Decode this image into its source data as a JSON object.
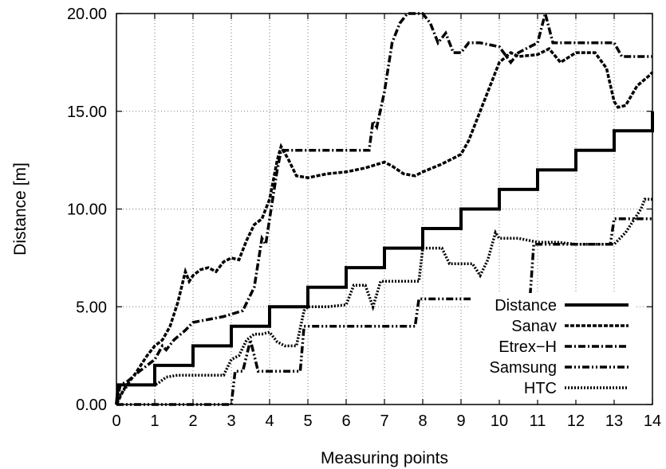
{
  "chart_data": {
    "type": "line",
    "xlabel": "Measuring points",
    "ylabel": "Distance [m]",
    "xlim": [
      0,
      14
    ],
    "ylim": [
      0,
      20
    ],
    "x_ticks": [
      "0",
      "1",
      "2",
      "3",
      "4",
      "5",
      "6",
      "7",
      "8",
      "9",
      "10",
      "11",
      "12",
      "13",
      "14"
    ],
    "y_ticks": [
      "0.00",
      "5.00",
      "10.00",
      "15.00",
      "20.00"
    ],
    "grid": true,
    "legend_position": "bottom-right",
    "series": [
      {
        "name": "Distance",
        "color": "#000000",
        "style": "solid",
        "points": [
          [
            0,
            0
          ],
          [
            0.05,
            1
          ],
          [
            1,
            1
          ],
          [
            1,
            2
          ],
          [
            2,
            2
          ],
          [
            2,
            3
          ],
          [
            3,
            3
          ],
          [
            3,
            4
          ],
          [
            4,
            4
          ],
          [
            4,
            5
          ],
          [
            5,
            5
          ],
          [
            5,
            6
          ],
          [
            6,
            6
          ],
          [
            6,
            7
          ],
          [
            7,
            7
          ],
          [
            7,
            8
          ],
          [
            8,
            8
          ],
          [
            8,
            9
          ],
          [
            9,
            9
          ],
          [
            9,
            10
          ],
          [
            10,
            10
          ],
          [
            10,
            11
          ],
          [
            11,
            11
          ],
          [
            11,
            12
          ],
          [
            12,
            12
          ],
          [
            12,
            13
          ],
          [
            13,
            13
          ],
          [
            13,
            14
          ],
          [
            14,
            14
          ],
          [
            14,
            15
          ]
        ]
      },
      {
        "name": "Sanav",
        "color": "#000000",
        "style": "dashed",
        "points": [
          [
            0,
            0
          ],
          [
            0.2,
            0.8
          ],
          [
            0.5,
            1.6
          ],
          [
            0.8,
            2.5
          ],
          [
            1.0,
            3.0
          ],
          [
            1.2,
            3.3
          ],
          [
            1.4,
            4.0
          ],
          [
            1.6,
            5.2
          ],
          [
            1.8,
            6.8
          ],
          [
            1.9,
            6.3
          ],
          [
            2.0,
            6.6
          ],
          [
            2.2,
            6.9
          ],
          [
            2.4,
            7.0
          ],
          [
            2.6,
            6.8
          ],
          [
            2.8,
            7.3
          ],
          [
            3.0,
            7.5
          ],
          [
            3.2,
            7.4
          ],
          [
            3.4,
            8.4
          ],
          [
            3.6,
            9.2
          ],
          [
            3.8,
            9.5
          ],
          [
            4.0,
            10.5
          ],
          [
            4.1,
            11.5
          ],
          [
            4.2,
            12.5
          ],
          [
            4.3,
            13.2
          ],
          [
            4.5,
            12.5
          ],
          [
            4.7,
            11.7
          ],
          [
            5.0,
            11.6
          ],
          [
            5.5,
            11.8
          ],
          [
            6.0,
            11.9
          ],
          [
            6.5,
            12.1
          ],
          [
            7.0,
            12.4
          ],
          [
            7.2,
            12.2
          ],
          [
            7.5,
            11.8
          ],
          [
            7.8,
            11.7
          ],
          [
            8.0,
            11.9
          ],
          [
            8.5,
            12.3
          ],
          [
            9.0,
            12.8
          ],
          [
            9.2,
            13.5
          ],
          [
            9.5,
            15.0
          ],
          [
            9.8,
            16.5
          ],
          [
            10.0,
            17.5
          ],
          [
            10.3,
            18.0
          ],
          [
            10.5,
            17.8
          ],
          [
            11.0,
            17.9
          ],
          [
            11.3,
            18.2
          ],
          [
            11.6,
            17.5
          ],
          [
            12.0,
            18.0
          ],
          [
            12.5,
            18.0
          ],
          [
            12.8,
            17.2
          ],
          [
            13.0,
            15.5
          ],
          [
            13.1,
            15.2
          ],
          [
            13.3,
            15.3
          ],
          [
            13.6,
            16.3
          ],
          [
            13.9,
            16.8
          ],
          [
            14.0,
            17.0
          ]
        ]
      },
      {
        "name": "Etrex−H",
        "color": "#000000",
        "style": "dash-dot",
        "points": [
          [
            0,
            0
          ],
          [
            0.1,
            1
          ],
          [
            0.3,
            1.2
          ],
          [
            0.6,
            1.7
          ],
          [
            1.0,
            2.3
          ],
          [
            1.2,
            3.0
          ],
          [
            1.3,
            2.8
          ],
          [
            1.5,
            3.3
          ],
          [
            1.8,
            3.8
          ],
          [
            2.0,
            4.2
          ],
          [
            2.8,
            4.5
          ],
          [
            3.3,
            4.8
          ],
          [
            3.6,
            6.0
          ],
          [
            3.8,
            8.5
          ],
          [
            3.9,
            8.2
          ],
          [
            4.0,
            9.5
          ],
          [
            4.2,
            12.0
          ],
          [
            4.3,
            13.0
          ],
          [
            5.0,
            13.0
          ],
          [
            6.0,
            13.0
          ],
          [
            6.6,
            13.0
          ],
          [
            6.7,
            14.5
          ],
          [
            6.8,
            14.2
          ],
          [
            7.0,
            16.0
          ],
          [
            7.2,
            18.5
          ],
          [
            7.4,
            19.5
          ],
          [
            7.6,
            20.0
          ],
          [
            8.0,
            20.0
          ],
          [
            8.2,
            19.5
          ],
          [
            8.4,
            18.5
          ],
          [
            8.6,
            19.0
          ],
          [
            8.8,
            18.0
          ],
          [
            9.0,
            18.0
          ],
          [
            9.2,
            18.5
          ],
          [
            9.5,
            18.5
          ],
          [
            10.0,
            18.3
          ],
          [
            10.3,
            17.5
          ],
          [
            10.5,
            18.0
          ],
          [
            10.8,
            18.3
          ],
          [
            11.0,
            18.5
          ],
          [
            11.2,
            20.0
          ],
          [
            11.4,
            18.5
          ],
          [
            12.0,
            18.5
          ],
          [
            12.5,
            18.5
          ],
          [
            13.0,
            18.5
          ],
          [
            13.2,
            17.8
          ],
          [
            14.0,
            17.8
          ]
        ]
      },
      {
        "name": "Samsung",
        "color": "#000000",
        "style": "dash-dot-dot",
        "points": [
          [
            0,
            0
          ],
          [
            2.9,
            0
          ],
          [
            3.0,
            0
          ],
          [
            3.1,
            1.7
          ],
          [
            3.3,
            1.7
          ],
          [
            3.5,
            3.3
          ],
          [
            3.6,
            2.5
          ],
          [
            3.7,
            1.7
          ],
          [
            4.0,
            1.7
          ],
          [
            4.5,
            1.7
          ],
          [
            4.8,
            1.7
          ],
          [
            4.9,
            4.0
          ],
          [
            5.5,
            4.0
          ],
          [
            6.0,
            4.0
          ],
          [
            7.0,
            4.0
          ],
          [
            7.8,
            4.0
          ],
          [
            7.9,
            5.4
          ],
          [
            8.5,
            5.4
          ],
          [
            9.0,
            5.4
          ],
          [
            10.0,
            5.4
          ],
          [
            10.8,
            5.4
          ],
          [
            10.9,
            8.2
          ],
          [
            11.5,
            8.2
          ],
          [
            12.0,
            8.2
          ],
          [
            12.9,
            8.2
          ],
          [
            13.0,
            9.5
          ],
          [
            13.5,
            9.5
          ],
          [
            14.0,
            9.5
          ]
        ]
      },
      {
        "name": "HTC",
        "color": "#000000",
        "style": "dotted",
        "points": [
          [
            0,
            0
          ],
          [
            0.1,
            0.5
          ],
          [
            0.3,
            1.0
          ],
          [
            0.8,
            1.0
          ],
          [
            1.0,
            1.0
          ],
          [
            1.1,
            1.1
          ],
          [
            1.3,
            1.4
          ],
          [
            1.6,
            1.5
          ],
          [
            2.0,
            1.5
          ],
          [
            2.5,
            1.5
          ],
          [
            2.8,
            1.5
          ],
          [
            3.0,
            2.3
          ],
          [
            3.2,
            2.5
          ],
          [
            3.4,
            3.3
          ],
          [
            3.6,
            3.6
          ],
          [
            3.8,
            3.6
          ],
          [
            4.0,
            3.7
          ],
          [
            4.2,
            3.2
          ],
          [
            4.4,
            3.0
          ],
          [
            4.7,
            3.0
          ],
          [
            4.9,
            4.8
          ],
          [
            5.0,
            5.0
          ],
          [
            5.5,
            5.0
          ],
          [
            6.0,
            5.1
          ],
          [
            6.2,
            6.1
          ],
          [
            6.5,
            6.1
          ],
          [
            6.7,
            5.0
          ],
          [
            6.9,
            6.3
          ],
          [
            7.0,
            6.3
          ],
          [
            7.5,
            6.3
          ],
          [
            7.9,
            6.3
          ],
          [
            8.0,
            8.0
          ],
          [
            8.5,
            8.0
          ],
          [
            8.7,
            7.2
          ],
          [
            9.0,
            7.2
          ],
          [
            9.3,
            7.2
          ],
          [
            9.5,
            6.6
          ],
          [
            9.7,
            7.4
          ],
          [
            9.9,
            8.8
          ],
          [
            10.0,
            8.5
          ],
          [
            10.5,
            8.5
          ],
          [
            11.0,
            8.3
          ],
          [
            11.5,
            8.3
          ],
          [
            12.0,
            8.2
          ],
          [
            13.0,
            8.2
          ],
          [
            13.3,
            8.8
          ],
          [
            13.7,
            10.0
          ],
          [
            13.8,
            10.5
          ],
          [
            14.0,
            10.5
          ]
        ]
      }
    ]
  }
}
